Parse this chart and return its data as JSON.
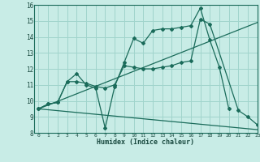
{
  "xlabel": "Humidex (Indice chaleur)",
  "ylabel": "",
  "background_color": "#c8ece6",
  "grid_color": "#a0d4cc",
  "line_color": "#1a6b5a",
  "xlim": [
    -0.5,
    23
  ],
  "ylim": [
    8,
    16
  ],
  "xticks": [
    0,
    1,
    2,
    3,
    4,
    5,
    6,
    7,
    8,
    9,
    10,
    11,
    12,
    13,
    14,
    15,
    16,
    17,
    18,
    19,
    20,
    21,
    22,
    23
  ],
  "yticks": [
    8,
    9,
    10,
    11,
    12,
    13,
    14,
    15,
    16
  ],
  "series": [
    {
      "x": [
        0,
        1,
        2,
        3,
        4,
        5,
        6,
        7,
        8,
        9,
        10,
        11,
        12,
        13,
        14,
        15,
        16,
        17,
        18,
        19,
        20
      ],
      "y": [
        9.5,
        9.8,
        9.9,
        11.2,
        11.7,
        11.0,
        10.8,
        8.3,
        10.9,
        12.4,
        13.9,
        13.6,
        14.4,
        14.5,
        14.5,
        14.6,
        14.7,
        15.8,
        13.8,
        12.1,
        9.5
      ]
    },
    {
      "x": [
        0,
        1,
        2,
        3,
        4,
        5,
        6,
        7,
        8,
        9,
        10,
        11,
        12,
        13,
        14,
        15,
        16,
        17,
        18,
        21,
        22,
        23
      ],
      "y": [
        9.5,
        9.8,
        9.9,
        11.2,
        11.2,
        11.1,
        10.9,
        10.8,
        11.0,
        12.2,
        12.1,
        12.0,
        12.0,
        12.1,
        12.2,
        12.4,
        12.5,
        15.1,
        14.8,
        9.4,
        9.0,
        8.5
      ]
    },
    {
      "x": [
        0,
        23
      ],
      "y": [
        9.5,
        14.9
      ]
    },
    {
      "x": [
        0,
        23
      ],
      "y": [
        9.5,
        8.2
      ]
    }
  ]
}
